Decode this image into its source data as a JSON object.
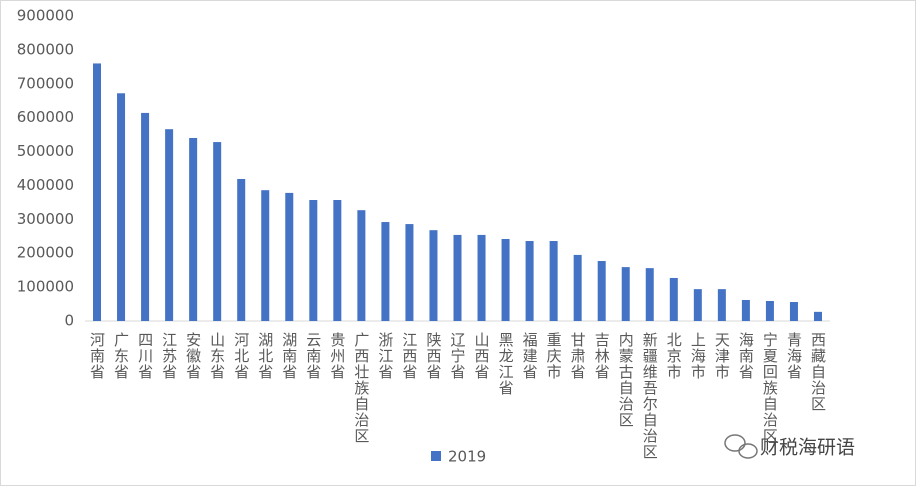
{
  "chart_data": {
    "type": "bar",
    "categories": [
      "河南省",
      "广东省",
      "四川省",
      "江苏省",
      "安徽省",
      "山东省",
      "河北省",
      "湖北省",
      "湖南省",
      "云南省",
      "贵州省",
      "广西壮族自治区",
      "浙江省",
      "江西省",
      "陕西省",
      "辽宁省",
      "山西省",
      "黑龙江省",
      "福建省",
      "重庆市",
      "甘肃省",
      "吉林省",
      "内蒙古自治区",
      "新疆维吾尔自治区",
      "北京市",
      "上海市",
      "天津市",
      "海南省",
      "宁夏回族自治区",
      "青海省",
      "西藏自治区"
    ],
    "series": [
      {
        "name": "2019",
        "color": "#4472c4",
        "values": [
          760000,
          672000,
          614000,
          566000,
          540000,
          528000,
          419000,
          386000,
          378000,
          357000,
          357000,
          327000,
          292000,
          286000,
          268000,
          254000,
          254000,
          242000,
          236000,
          236000,
          195000,
          177000,
          159000,
          156000,
          127000,
          94000,
          94000,
          62000,
          59000,
          56000,
          27000
        ]
      }
    ],
    "ylim": [
      0,
      900000
    ],
    "yticks": [
      0,
      100000,
      200000,
      300000,
      400000,
      500000,
      600000,
      700000,
      800000,
      900000
    ],
    "grid": false,
    "legend": "bottom",
    "watermark": "财税海研语"
  }
}
